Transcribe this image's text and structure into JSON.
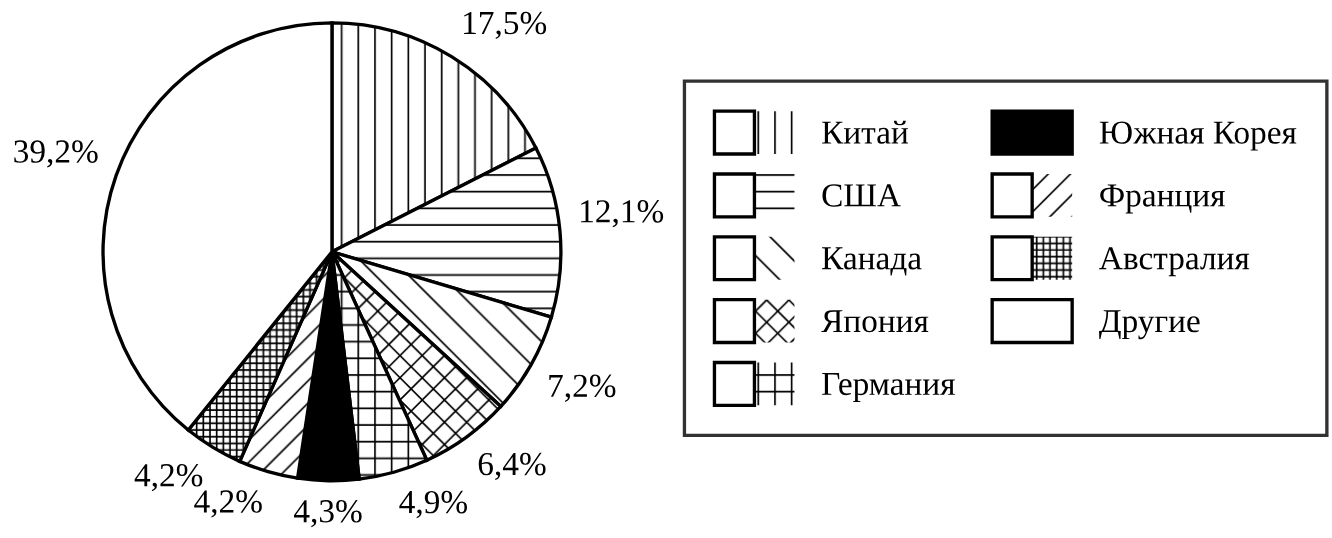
{
  "chart_data": {
    "type": "pie",
    "categories": [
      "Китай",
      "США",
      "Канада",
      "Япония",
      "Германия",
      "Южная Корея",
      "Франция",
      "Австралия",
      "Другие"
    ],
    "values": [
      17.5,
      12.1,
      7.2,
      6.4,
      4.9,
      4.3,
      4.2,
      4.2,
      39.2
    ],
    "value_labels": [
      "17,5%",
      "12,1%",
      "7,2%",
      "6,4%",
      "4,9%",
      "4,3%",
      "4,2%",
      "4,2%",
      "39,2%"
    ],
    "colors": [
      "#ffffff",
      "#ffffff",
      "#ffffff",
      "#ffffff",
      "#ffffff",
      "#000000",
      "#ffffff",
      "#ffffff",
      "#ffffff"
    ],
    "legend": "right"
  }
}
